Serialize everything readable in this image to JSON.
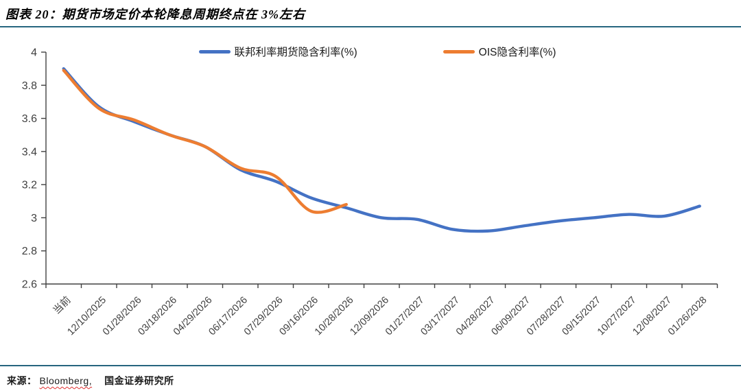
{
  "title": "图表 20：期货市场定价本轮降息周期终点在 3%左右",
  "source": {
    "prefix": "来源：",
    "highlight": "Bloomberg,",
    "rest": "国金证券研究所"
  },
  "colors": {
    "blue": "#4472C4",
    "orange": "#ED7D31",
    "rule": "#26657f",
    "axis_line": "#404040",
    "tick_text": "#3f3f3f"
  },
  "chart_data": {
    "type": "line",
    "smooth": true,
    "grid": false,
    "legend_position": "top",
    "xlabel": "",
    "ylabel": "",
    "ylim": [
      2.6,
      4.0
    ],
    "yticks": [
      4.0,
      3.8,
      3.6,
      3.4,
      3.2,
      3.0,
      2.8,
      2.6
    ],
    "ytick_labels": [
      "4",
      "3.8",
      "3.6",
      "3.4",
      "3.2",
      "3",
      "2.8",
      "2.6"
    ],
    "categories": [
      "当前",
      "12/10/2025",
      "01/28/2026",
      "03/18/2026",
      "04/29/2026",
      "06/17/2026",
      "07/29/2026",
      "09/16/2026",
      "10/28/2026",
      "12/09/2026",
      "01/27/2027",
      "03/17/2027",
      "04/28/2027",
      "06/09/2027",
      "07/28/2027",
      "09/15/2027",
      "10/27/2027",
      "12/08/2027",
      "01/26/2028"
    ],
    "series": [
      {
        "name": "联邦利率期货隐含利率(%)",
        "color": "#4472C4",
        "values": [
          3.9,
          3.67,
          3.58,
          3.5,
          3.43,
          3.29,
          3.22,
          3.12,
          3.06,
          3.0,
          2.99,
          2.93,
          2.92,
          2.95,
          2.98,
          3.0,
          3.02,
          3.01,
          3.07
        ]
      },
      {
        "name": "OIS隐含利率(%)",
        "color": "#ED7D31",
        "values": [
          3.89,
          3.66,
          3.59,
          3.5,
          3.43,
          3.3,
          3.25,
          3.04,
          3.08
        ]
      }
    ]
  }
}
